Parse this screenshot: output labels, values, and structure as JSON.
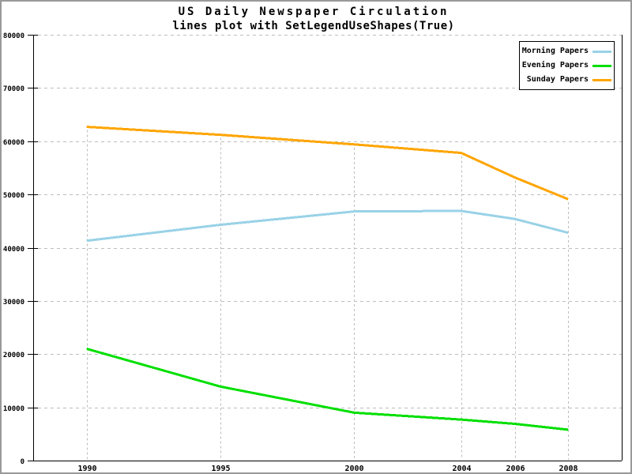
{
  "frame": {
    "background": "#FFFFFF",
    "border_color": "#999999"
  },
  "colors": {
    "axis": "#000000",
    "grid": "#BDBDBD",
    "text": "#000000",
    "legend_border": "#000000"
  },
  "chart_data": {
    "type": "line",
    "title": "US Daily Newspaper Circulation",
    "subtitle": "lines plot with SetLegendUseShapes(True)",
    "x": [
      1990,
      1995,
      2000,
      2004,
      2006,
      2008
    ],
    "x_ticks": [
      1990,
      1995,
      2000,
      2004,
      2006,
      2008
    ],
    "y_ticks": [
      0,
      10000,
      20000,
      30000,
      40000,
      50000,
      60000,
      70000,
      80000
    ],
    "xlim": [
      1988,
      2010
    ],
    "ylim": [
      0,
      80000
    ],
    "grid": "dashed",
    "legend_position": "top-right",
    "legend_use_shapes": true,
    "series": [
      {
        "name": "Morning Papers",
        "color": "#99D2E7",
        "values": [
          41300,
          44300,
          46800,
          46900,
          45400,
          42800
        ]
      },
      {
        "name": "Evening Papers",
        "color": "#00DF00",
        "values": [
          21000,
          13900,
          9000,
          7700,
          6900,
          5800
        ]
      },
      {
        "name": "Sunday Papers",
        "color": "#FFA500",
        "values": [
          62700,
          61200,
          59400,
          57800,
          53200,
          49100
        ]
      }
    ]
  }
}
